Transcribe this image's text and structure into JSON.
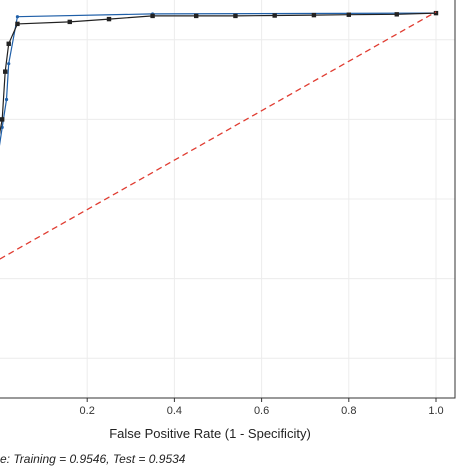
{
  "chart_data": {
    "type": "line",
    "xlabel": "False Positive Rate (1 - Specificity)",
    "ylabel": "",
    "xlim": [
      -0.16,
      1.0
    ],
    "ylim": [
      0.0,
      1.0
    ],
    "x_ticks": [
      0.2,
      0.4,
      0.6,
      0.8,
      1.0
    ],
    "x_tick_labels": [
      "0.2",
      "0.4",
      "0.6",
      "0.8",
      "1.0"
    ],
    "grid": true,
    "footnote": "e: Training = 0.9546, Test = 0.9534",
    "series": [
      {
        "color": "#1f5fa8",
        "marker": "circle",
        "x": [
          -0.16,
          -0.01,
          0.005,
          0.015,
          0.02,
          0.04,
          0.35,
          1.0
        ],
        "y": [
          0.55,
          0.57,
          0.68,
          0.75,
          0.84,
          0.958,
          0.965,
          0.967
        ]
      },
      {
        "color": "#222222",
        "marker": "square",
        "x": [
          -0.16,
          -0.01,
          -0.005,
          0.005,
          0.012,
          0.02,
          0.04,
          0.16,
          0.25,
          0.35,
          0.45,
          0.54,
          0.63,
          0.72,
          0.8,
          0.91,
          1.0
        ],
        "y": [
          0.55,
          0.57,
          0.64,
          0.7,
          0.82,
          0.89,
          0.94,
          0.945,
          0.952,
          0.96,
          0.96,
          0.96,
          0.961,
          0.962,
          0.963,
          0.964,
          0.967
        ]
      },
      {
        "color": "#e03c31",
        "dash": "dashed",
        "x": [
          -0.16,
          1.0
        ],
        "y": [
          0.25,
          0.97
        ]
      }
    ]
  }
}
